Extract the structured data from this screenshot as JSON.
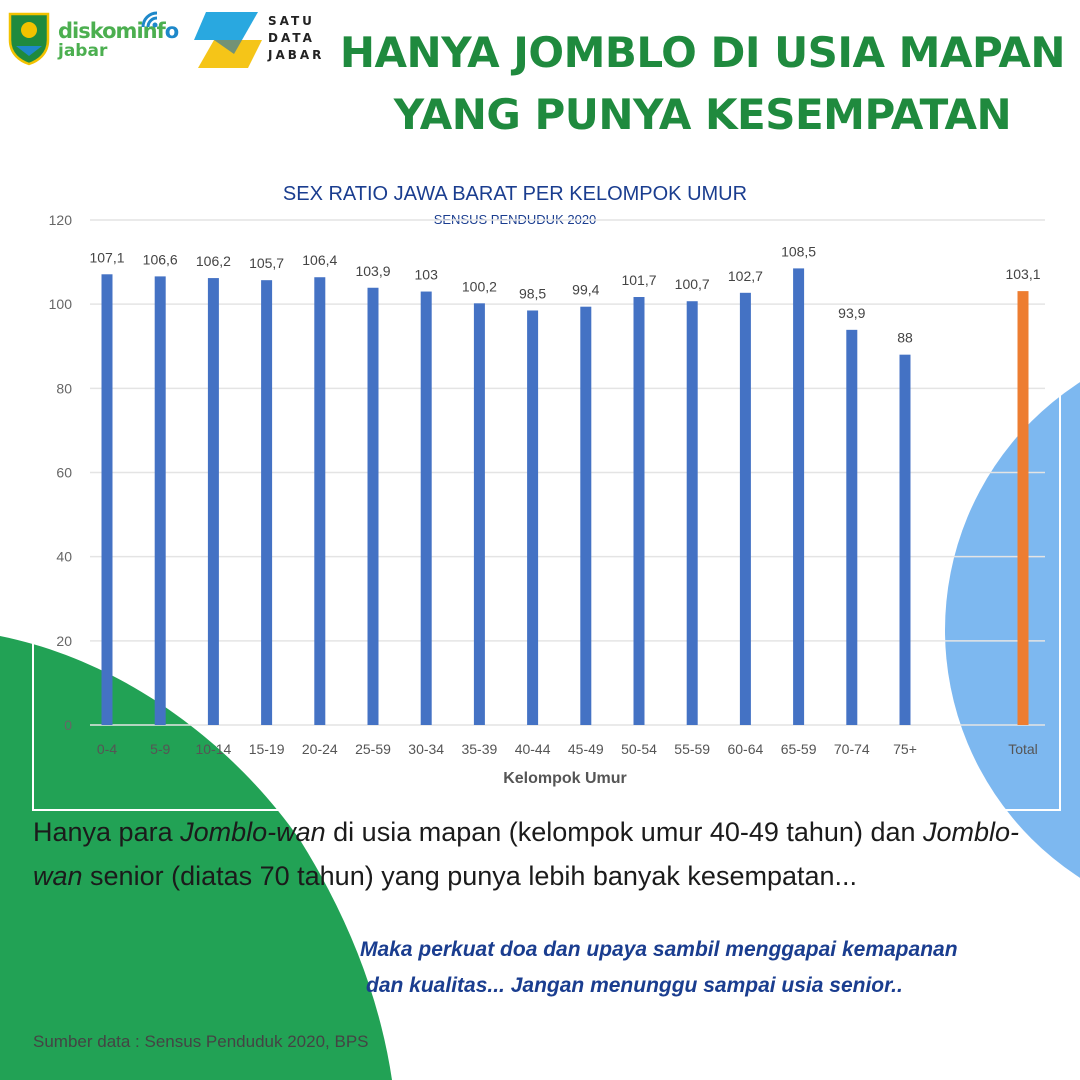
{
  "header": {
    "logo_disko_main_1": "diskominf",
    "logo_disko_main_2": "o",
    "logo_disko_sub": "jabar",
    "logo_sdj_lines": [
      "SATU",
      "DATA",
      "JABAR"
    ],
    "headline_line1": "HANYA JOMBLO DI USIA MAPAN",
    "headline_line2": "YANG PUNYA KESEMPATAN"
  },
  "colors": {
    "headline": "#1f8a3e",
    "bar": "#4472c4",
    "total_bar": "#ed7d31",
    "chart_title": "#1a3d8f",
    "green_blob": "#22a255",
    "blue_blob": "#7db8f0",
    "callout": "#1a3d8f"
  },
  "chart_data": {
    "type": "bar",
    "title": "SEX RATIO JAWA BARAT PER KELOMPOK UMUR",
    "subtitle": "SENSUS PENDUDUK  2020",
    "xlabel": "Kelompok Umur",
    "ylabel": "",
    "ylim": [
      0,
      120
    ],
    "yticks": [
      0,
      20,
      40,
      60,
      80,
      100,
      120
    ],
    "grid": true,
    "categories": [
      "0-4",
      "5-9",
      "10-14",
      "15-19",
      "20-24",
      "25-59",
      "30-34",
      "35-39",
      "40-44",
      "45-49",
      "50-54",
      "55-59",
      "60-64",
      "65-59",
      "70-74",
      "75+",
      "Total"
    ],
    "values": [
      107.1,
      106.6,
      106.2,
      105.7,
      106.4,
      103.9,
      103,
      100.2,
      98.5,
      99.4,
      101.7,
      100.7,
      102.7,
      108.5,
      93.9,
      88,
      103.1
    ],
    "data_labels": [
      "107,1",
      "106,6",
      "106,2",
      "105,7",
      "106,4",
      "103,9",
      "103",
      "100,2",
      "98,5",
      "99,4",
      "101,7",
      "100,7",
      "102,7",
      "108,5",
      "93,9",
      "88",
      "103,1"
    ],
    "highlight_category": "Total"
  },
  "body": {
    "t1": "Hanya para ",
    "t2": "Jomblo-wan",
    "t3": " di usia mapan (kelompok umur 40-49 tahun) dan ",
    "t4": "Jomblo-wan",
    "t5": " senior (diatas 70 tahun) yang punya lebih banyak kesempatan..."
  },
  "callout": {
    "line1": "Maka perkuat doa dan upaya sambil menggapai kemapanan",
    "line2": "dan kualitas... Jangan menunggu sampai usia senior.."
  },
  "footer": {
    "source": "Sumber data : Sensus Penduduk 2020, BPS"
  }
}
